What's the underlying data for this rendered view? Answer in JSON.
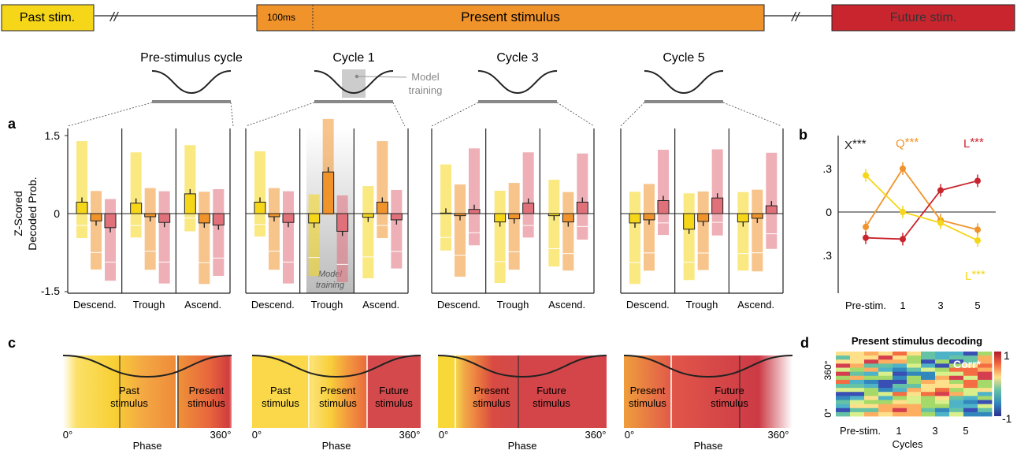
{
  "timeline": {
    "past_label": "Past stim.",
    "ms_label": "100ms",
    "present_label": "Present stimulus",
    "future_label": "Future stim.",
    "break_mark": "//"
  },
  "cycles": {
    "labels": [
      "Pre-stimulus cycle",
      "Cycle 1",
      "Cycle 3",
      "Cycle 5"
    ],
    "model_training_line1": "Model",
    "model_training_line2": "training"
  },
  "panel_letters": {
    "a": "a",
    "b": "b",
    "c": "c",
    "d": "d"
  },
  "panel_a": {
    "ylabel_line1": "Z-Scored",
    "ylabel_line2": "Decoded Prob.",
    "yticks": [
      "1.5",
      "0",
      "-1.5"
    ],
    "phase_labels": [
      "Descend.",
      "Trough",
      "Ascend."
    ],
    "model_training_line1": "Model",
    "model_training_line2": "training"
  },
  "panel_b": {
    "xticks": [
      "Pre-stim.",
      "1",
      "3",
      "5"
    ],
    "yticks": [
      ".3",
      "0",
      ".3"
    ],
    "label_X": "X",
    "label_Q": "Q",
    "label_L_red": "L",
    "label_L_yellow": "L",
    "stars": "***"
  },
  "panel_c": {
    "panels": [
      {
        "labels": [
          [
            "Past",
            "stimulus"
          ],
          [
            "Present",
            "stimulus"
          ]
        ]
      },
      {
        "labels": [
          [
            "Past",
            "stimulus"
          ],
          [
            "Present",
            "stimulus"
          ],
          [
            "Future",
            "stimulus"
          ]
        ]
      },
      {
        "labels": [
          [
            "Present",
            "stimulus"
          ],
          [
            "Future",
            "stimulus"
          ]
        ]
      },
      {
        "labels": [
          [
            "Present",
            "stimulus"
          ],
          [
            "Future",
            "stimulus"
          ]
        ]
      }
    ],
    "x0": "0°",
    "x360": "360°",
    "xlabel": "Phase"
  },
  "panel_d": {
    "title": "Present stimulus decoding",
    "ytick_top": "360°",
    "ytick_bottom": "0°",
    "xticks": [
      "Pre-stim.",
      "1",
      "3",
      "5"
    ],
    "xlabel": "Cycles",
    "annotation": "Corr*",
    "cbar_top": "1",
    "cbar_bottom": "-1"
  },
  "colors": {
    "yellow": "#f5d619",
    "orange": "#f0932b",
    "light_orange": "#f7bf85",
    "pink": "#e0707a",
    "red": "#c9252f",
    "gray": "#888888"
  },
  "chart_data": [
    {
      "type": "bar",
      "panel": "a",
      "ylabel": "Z-Scored Decoded Prob.",
      "ylim": [
        -1.5,
        1.5
      ],
      "phases": [
        "Descend.",
        "Trough",
        "Ascend."
      ],
      "series_colors": [
        "#f5d619",
        "#f0932b",
        "#e0707a"
      ],
      "groups": [
        {
          "cycle": "Pre-stimulus cycle",
          "means": [
            [
              0.22,
              -0.14,
              -0.27
            ],
            [
              0.2,
              -0.06,
              -0.17
            ],
            [
              0.38,
              -0.18,
              -0.22
            ]
          ]
        },
        {
          "cycle": "Cycle 1",
          "means": [
            [
              0.22,
              -0.06,
              -0.17
            ],
            [
              -0.18,
              0.8,
              -0.34
            ],
            [
              -0.07,
              0.22,
              -0.12
            ]
          ]
        },
        {
          "cycle": "Cycle 3",
          "means": [
            [
              0.01,
              -0.04,
              0.08
            ],
            [
              -0.16,
              -0.1,
              0.2
            ],
            [
              -0.04,
              -0.16,
              0.22
            ]
          ]
        },
        {
          "cycle": "Cycle 5",
          "means": [
            [
              -0.18,
              -0.12,
              0.25
            ],
            [
              -0.3,
              -0.15,
              0.3
            ],
            [
              -0.16,
              -0.09,
              0.15
            ]
          ]
        }
      ]
    },
    {
      "type": "line",
      "panel": "b",
      "x": [
        "Pre-stim.",
        "1",
        "3",
        "5"
      ],
      "series": [
        {
          "name": "Q",
          "values": [
            -0.11,
            0.32,
            -0.06,
            -0.13
          ]
        },
        {
          "name": "L",
          "values": [
            -0.19,
            -0.2,
            0.16,
            0.23
          ]
        },
        {
          "name": "L",
          "values": [
            0.27,
            0.0,
            -0.08,
            -0.21
          ]
        }
      ]
    }
  ]
}
